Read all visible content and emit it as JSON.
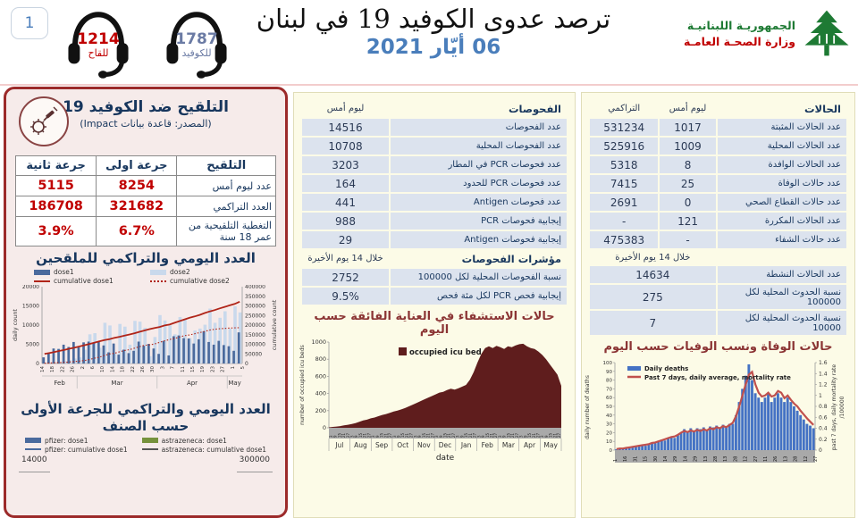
{
  "header": {
    "page_number": "1",
    "hotline_vaccine": {
      "number": "1214",
      "label": "للقاح"
    },
    "hotline_covid": {
      "number": "1787",
      "label": "للكوفيد"
    },
    "title": "ترصد عدوى الكوفيد 19 في لبنان",
    "date": "06 أيّار 2021",
    "ministry": {
      "line1": "الجمهوريـة اللبنانيـة",
      "line2": "وزارة الصحـة العامـة"
    }
  },
  "vaccination_panel": {
    "title": "التلقيح ضد الكوفيد 19",
    "source": "(المصدر: قاعدة بيانات Impact)",
    "table": {
      "headers": [
        "التلقيح",
        "جرعة اولى",
        "جرعة ثانية"
      ],
      "rows": [
        [
          "عدد ليوم أمس",
          "8254",
          "5115"
        ],
        [
          "العدد التراكمي",
          "321682",
          "186708"
        ],
        [
          "التغطية التلقيحية من عمر 18 سنة",
          "6.7%",
          "3.9%"
        ]
      ]
    },
    "chart1_title": "العدد اليومي والتراكمي للملقحين",
    "chart2_title": "العدد اليومي والتراكمي للجرعة الأولى حسب الصنف",
    "chart2_legend": [
      "pfizer: dose1",
      "astrazeneca: dose1",
      "pfizer: cumulative dose1",
      "astrazeneca: cumulative dose1"
    ],
    "chart2_axis_start": {
      "left": "14000",
      "right": "300000"
    }
  },
  "tests_panel": {
    "col_header": {
      "label": "الفحوصات",
      "value": "ليوم أمس"
    },
    "rows": [
      [
        "عدد الفحوصات",
        "14516"
      ],
      [
        "عدد الفحوصات المحلية",
        "10708"
      ],
      [
        "عدد فحوصات PCR في المطار",
        "3203"
      ],
      [
        "عدد فحوصات PCR للحدود",
        "164"
      ],
      [
        "عدد فحوصات Antigen",
        "441"
      ],
      [
        "إيجابية فحوصات PCR",
        "988"
      ],
      [
        "إيجابية فحوصات Antigen",
        "29"
      ]
    ],
    "indicators_header": {
      "label": "مؤشرات الفحوصات",
      "value": "خلال 14 يوم الأخيرة"
    },
    "indicator_rows": [
      [
        "نسبة الفحوصات المحلية لكل 100000",
        "2752"
      ],
      [
        "إيجابية فحص PCR لكل مئة فحص",
        "9.5%"
      ]
    ],
    "chart_title": "حالات الاستشفاء في العناية الفائقة حسب اليوم"
  },
  "cases_panel": {
    "col_headers": [
      "الحالات",
      "ليوم أمس",
      "التراكمي"
    ],
    "rows": [
      [
        "عدد الحالات المثبتة",
        "1017",
        "531234"
      ],
      [
        "عدد الحالات المحلية",
        "1009",
        "525916"
      ],
      [
        "عدد الحالات الوافدة",
        "8",
        "5318"
      ],
      [
        "عدد حالات الوفاة",
        "25",
        "7415"
      ],
      [
        "عدد حالات القطاع الصحي",
        "0",
        "2691"
      ],
      [
        "عدد الحالات المكررة",
        "121",
        "-"
      ],
      [
        "عدد حالات الشفاء",
        "-",
        "475383"
      ]
    ],
    "period_header": "خلال 14 يوم الأخيرة",
    "period_rows": [
      [
        "عدد الحالات النشطة",
        "14634"
      ],
      [
        "نسبة الحدوث المحلية لكل 100000",
        "275"
      ],
      [
        "نسبة الحدوث المحلية لكل 10000",
        "7"
      ]
    ],
    "chart_title": "حالات الوفاة ونسب الوفيات حسب اليوم"
  },
  "colors": {
    "accent_red": "#c00000",
    "navy": "#17365d",
    "panel_pink": "#f6ebea",
    "panel_border_red": "#9c2a2a",
    "cream": "#fcfbe7",
    "row_blue": "#dce3ee",
    "title_maroon": "#8b3434",
    "date_blue": "#4a7ebb",
    "pfizer_blue": "#4a6a9d",
    "astrazeneca_green": "#76923c"
  },
  "chart_data": [
    {
      "id": "vaccination_daily_cumulative",
      "type": "bar",
      "title": "العدد اليومي والتراكمي للملقحين",
      "ylabel_left": "daily count",
      "ylabel_right": "cumulative count",
      "ylim_left": [
        0,
        20000
      ],
      "ylim_right": [
        0,
        400000
      ],
      "x_tick_labels": [
        "14",
        "18",
        "22",
        "26",
        "2",
        "6",
        "10",
        "14",
        "18",
        "22",
        "26",
        "30",
        "3",
        "7",
        "11",
        "15",
        "19",
        "23",
        "27",
        "1",
        "5"
      ],
      "month_groups": [
        {
          "label": "Feb",
          "ticks": 4
        },
        {
          "label": "Mar",
          "ticks": 8
        },
        {
          "label": "Apr",
          "ticks": 7
        },
        {
          "label": "May",
          "ticks": 2
        }
      ],
      "series": [
        {
          "name": "dose1",
          "type": "bar",
          "color": "#4a6a9d",
          "values": [
            1600,
            2600,
            3900,
            3800,
            4900,
            4300,
            5600,
            4200,
            5500,
            5700,
            5300,
            5600,
            4700,
            2900,
            5200,
            2300,
            3600,
            2700,
            3300,
            5700,
            4600,
            5100,
            3900,
            2500,
            5900,
            2100,
            7100,
            7300,
            6600,
            6500,
            5200,
            6300,
            8400,
            5600,
            4900,
            5900,
            4800,
            4500,
            3300,
            8100
          ]
        },
        {
          "name": "dose2",
          "type": "bar",
          "color": "#c9d9ec",
          "values": [
            0,
            0,
            0,
            0,
            600,
            900,
            1300,
            1600,
            3600,
            7600,
            7900,
            4100,
            10600,
            9900,
            2600,
            10300,
            9600,
            4900,
            11100,
            10900,
            9300,
            1900,
            6900,
            12600,
            11200,
            9900,
            7600,
            12100,
            11600,
            6600,
            8600,
            9100,
            10100,
            14300,
            10600,
            11900,
            13600,
            9100,
            14900,
            13300
          ]
        },
        {
          "name": "cumulative dose1",
          "type": "line",
          "style": "solid",
          "color": "#b02418",
          "axis": "right",
          "values": [
            50000,
            55000,
            60000,
            65500,
            71000,
            77000,
            83000,
            89000,
            95500,
            102000,
            109000,
            116000,
            122000,
            127000,
            134000,
            139000,
            145000,
            151000,
            157500,
            165000,
            172000,
            179000,
            185000,
            190000,
            198000,
            203000,
            212000,
            221000,
            230000,
            238000,
            245000,
            253000,
            263000,
            271000,
            278000,
            287000,
            295000,
            303000,
            310000,
            321682
          ]
        },
        {
          "name": "cumulative dose2",
          "type": "line",
          "style": "dotted",
          "color": "#b02418",
          "axis": "right",
          "values": [
            1500,
            2500,
            3500,
            4500,
            6000,
            8000,
            10000,
            12500,
            15500,
            21000,
            28000,
            33000,
            42000,
            50000,
            53000,
            61000,
            68000,
            72000,
            80000,
            88000,
            95000,
            97000,
            102000,
            110000,
            118000,
            125000,
            130000,
            138000,
            145000,
            149000,
            155000,
            161000,
            167000,
            174000,
            178000,
            181000,
            183000,
            184500,
            185500,
            186708
          ]
        }
      ]
    },
    {
      "id": "icu_occupancy",
      "type": "area",
      "legend": "occupied icu bed",
      "color": "#5f1d1d",
      "ylabel": "number of occupied icu beds",
      "xlabel": "date",
      "ylim": [
        0,
        1000
      ],
      "months": [
        "Jul",
        "Aug",
        "Sep",
        "Oct",
        "Nov",
        "Dec",
        "Jan",
        "Feb",
        "Mar",
        "Apr",
        "May"
      ],
      "x_minor_days": [
        "3",
        "9",
        "15",
        "21",
        "27"
      ],
      "values": [
        5,
        10,
        15,
        20,
        28,
        35,
        45,
        55,
        70,
        85,
        95,
        110,
        120,
        135,
        150,
        160,
        175,
        190,
        200,
        215,
        230,
        250,
        270,
        290,
        310,
        330,
        350,
        370,
        390,
        410,
        420,
        440,
        455,
        445,
        460,
        480,
        500,
        560,
        650,
        760,
        860,
        930,
        950,
        930,
        955,
        940,
        920,
        950,
        940,
        960,
        975,
        980,
        950,
        930,
        920,
        890,
        850,
        800,
        740,
        680,
        620,
        490
      ]
    },
    {
      "id": "daily_deaths_mortality",
      "type": "bar",
      "legend": [
        "Daily deaths",
        "Past 7 days, daily average, mortality rate"
      ],
      "bar_color": "#4472c4",
      "line_color": "#c0504d",
      "ylabel_left": "daily number of deaths",
      "ylabel_right_line1": "past 7 days, daily mortality rate",
      "ylabel_right_line2": "/100000",
      "ylim_left": [
        0,
        100
      ],
      "ylim_right": [
        0,
        1.6
      ],
      "x_tick_labels": [
        "1",
        "16",
        "31",
        "15",
        "30",
        "14",
        "29",
        "14",
        "29",
        "13",
        "28",
        "13",
        "28",
        "12",
        "27",
        "11",
        "26",
        "13",
        "28",
        "12",
        "27"
      ],
      "bars": [
        1,
        2,
        2,
        3,
        3,
        4,
        4,
        5,
        6,
        5,
        7,
        8,
        8,
        10,
        12,
        11,
        14,
        15,
        14,
        17,
        20,
        24,
        21,
        25,
        22,
        25,
        24,
        26,
        23,
        27,
        26,
        28,
        25,
        29,
        27,
        30,
        30,
        40,
        55,
        70,
        85,
        98,
        80,
        65,
        60,
        55,
        60,
        65,
        55,
        60,
        65,
        60,
        55,
        60,
        55,
        50,
        45,
        40,
        35,
        30,
        28,
        25
      ],
      "line": [
        0.02,
        0.03,
        0.03,
        0.04,
        0.05,
        0.06,
        0.07,
        0.08,
        0.09,
        0.1,
        0.11,
        0.13,
        0.14,
        0.16,
        0.18,
        0.2,
        0.22,
        0.24,
        0.25,
        0.28,
        0.32,
        0.35,
        0.33,
        0.36,
        0.34,
        0.37,
        0.35,
        0.38,
        0.36,
        0.4,
        0.38,
        0.42,
        0.4,
        0.44,
        0.42,
        0.46,
        0.5,
        0.62,
        0.8,
        1.0,
        1.2,
        1.38,
        1.43,
        1.2,
        1.05,
        0.98,
        1.0,
        1.05,
        0.98,
        1.0,
        1.08,
        1.05,
        0.95,
        1.0,
        0.92,
        0.85,
        0.8,
        0.72,
        0.65,
        0.58,
        0.52,
        0.46
      ]
    }
  ]
}
